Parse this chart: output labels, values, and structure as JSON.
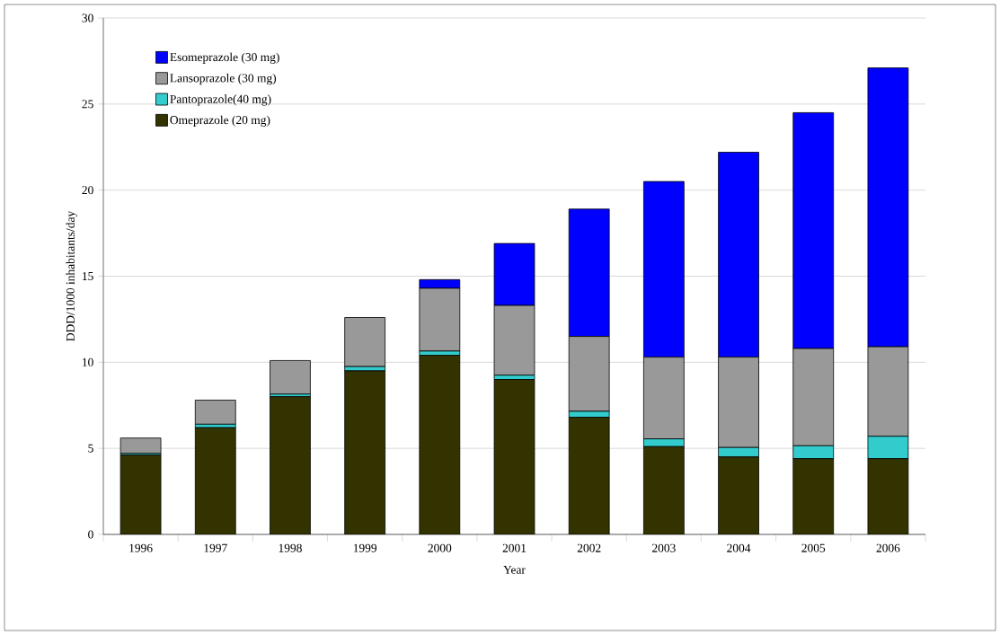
{
  "chart_data": {
    "type": "bar",
    "stacked": true,
    "xlabel": "Year",
    "ylabel": "DDD/1000 inhabitants/day",
    "categories": [
      "1996",
      "1997",
      "1998",
      "1999",
      "2000",
      "2001",
      "2002",
      "2003",
      "2004",
      "2005",
      "2006"
    ],
    "series": [
      {
        "name": "Omeprazole (20 mg)",
        "color": "#333300",
        "values": [
          4.6,
          6.2,
          8.0,
          9.5,
          10.4,
          9.0,
          6.8,
          5.1,
          4.5,
          4.4,
          4.4
        ]
      },
      {
        "name": "Pantoprazole(40 mg)",
        "color": "#33cccc",
        "values": [
          0.1,
          0.2,
          0.15,
          0.25,
          0.25,
          0.25,
          0.35,
          0.45,
          0.55,
          0.75,
          1.3
        ]
      },
      {
        "name": "Lansoprazole (30 mg)",
        "color": "#999999",
        "values": [
          0.9,
          1.4,
          1.95,
          2.85,
          3.65,
          4.05,
          4.35,
          4.75,
          5.25,
          5.65,
          5.2
        ]
      },
      {
        "name": "Esomeprazole (30 mg)",
        "color": "#0000ff",
        "values": [
          0,
          0,
          0,
          0,
          0.5,
          3.6,
          7.4,
          10.2,
          11.9,
          13.7,
          16.2
        ]
      }
    ],
    "ylim": [
      0,
      30
    ],
    "yticks": [
      0,
      5,
      10,
      15,
      20,
      25,
      30
    ],
    "grid": "y",
    "legend": "top left"
  }
}
